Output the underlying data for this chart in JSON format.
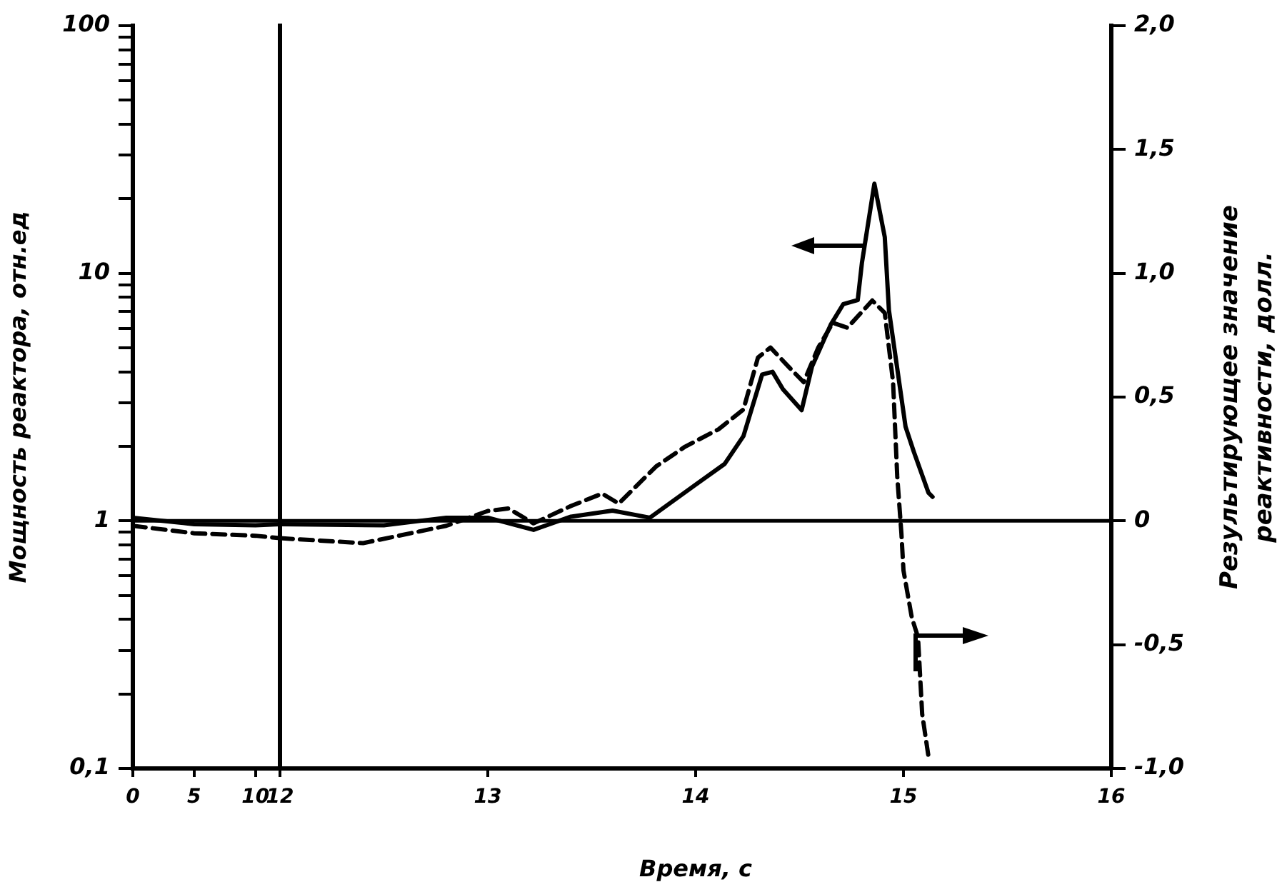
{
  "chart_data": [
    {
      "type": "line",
      "ylabel": "Мощность реактора, отн.ед",
      "marker": "none",
      "grid": false,
      "legend": false,
      "tick_labels": "xy",
      "xlim": [
        0,
        12
      ],
      "xticks": [
        0,
        5,
        10
      ],
      "ylim": [
        0.1,
        100
      ],
      "log": "y",
      "yticks": [
        {
          "value": 0.1,
          "label": "0,1"
        },
        {
          "value": 0.2,
          "label": null
        },
        {
          "value": 0.3,
          "label": null
        },
        {
          "value": 0.4,
          "label": null
        },
        {
          "value": 0.5,
          "label": null
        },
        {
          "value": 0.6,
          "label": null
        },
        {
          "value": 0.7,
          "label": null
        },
        {
          "value": 0.8,
          "label": null
        },
        {
          "value": 0.9,
          "label": null
        },
        1,
        {
          "value": 2,
          "label": null
        },
        {
          "value": 3,
          "label": null
        },
        {
          "value": 4,
          "label": null
        },
        {
          "value": 5,
          "label": null
        },
        {
          "value": 6,
          "label": null
        },
        {
          "value": 7,
          "label": null
        },
        {
          "value": 8,
          "label": null
        },
        {
          "value": 9,
          "label": null
        },
        10,
        {
          "value": 20,
          "label": null
        },
        {
          "value": 30,
          "label": null
        },
        {
          "value": 40,
          "label": null
        },
        {
          "value": 50,
          "label": null
        },
        {
          "value": 60,
          "label": null
        },
        {
          "value": 70,
          "label": null
        },
        {
          "value": 80,
          "label": null
        },
        {
          "value": 90,
          "label": null
        },
        100
      ],
      "y2lim": [
        -1.0,
        2.0
      ],
      "ref_lines": [
        {
          "axis": "y",
          "value": 1,
          "label": null
        }
      ],
      "series": [
        {
          "type": "line",
          "axis": "y",
          "color": "#000000",
          "line_style": "solid",
          "x": [
            0,
            5,
            10,
            12
          ],
          "values": [
            1.03,
            0.97,
            0.96,
            0.97
          ]
        },
        {
          "type": "line",
          "axis": "y2",
          "color": "#000000",
          "line_style": "dashed",
          "x": [
            0,
            5,
            10,
            12
          ],
          "values": [
            -0.02,
            -0.05,
            -0.06,
            -0.07
          ]
        }
      ]
    },
    {
      "type": "line",
      "xlabel": "Время, с",
      "y2label": "Результирующее значение реактивности, долл.",
      "marker": "none",
      "grid": false,
      "legend": false,
      "tick_labels": "xy2",
      "xlim": [
        12,
        16
      ],
      "xticks": [
        12,
        13,
        14,
        15,
        16
      ],
      "ylim": [
        0.1,
        100
      ],
      "log": "y",
      "y2lim": [
        -1.0,
        2.0
      ],
      "y2ticks": [
        {
          "value": -1.0,
          "label": "-1,0"
        },
        {
          "value": -0.5,
          "label": "-0,5"
        },
        0,
        {
          "value": 0.5,
          "label": "0,5"
        },
        {
          "value": 1.0,
          "label": "1,0"
        },
        {
          "value": 1.5,
          "label": "1,5"
        },
        {
          "value": 2.0,
          "label": "2,0"
        }
      ],
      "ref_lines": [
        {
          "axis": "y",
          "value": 1,
          "label": null
        }
      ],
      "series": [
        {
          "type": "line",
          "axis": "y",
          "color": "#000000",
          "line_style": "solid",
          "x": [
            12.0,
            12.5,
            12.8,
            13.0,
            13.22,
            13.4,
            13.6,
            13.78,
            14.0,
            14.14,
            14.23,
            14.32,
            14.37,
            14.42,
            14.51,
            14.56,
            14.65,
            14.71,
            14.78,
            14.8,
            14.86,
            14.91,
            14.93,
            15.01,
            15.05,
            15.12,
            15.14
          ],
          "values": [
            0.97,
            0.96,
            1.03,
            1.03,
            0.92,
            1.04,
            1.1,
            1.03,
            1.4,
            1.7,
            2.2,
            3.9,
            4.0,
            3.4,
            2.8,
            4.2,
            6.2,
            7.5,
            7.8,
            11,
            23,
            14,
            7.1,
            2.4,
            1.9,
            1.3,
            1.25
          ]
        },
        {
          "type": "line",
          "axis": "y2",
          "color": "#000000",
          "line_style": "dashed",
          "x": [
            12.0,
            12.4,
            12.8,
            13.0,
            13.1,
            13.22,
            13.4,
            13.55,
            13.63,
            13.81,
            13.95,
            14.11,
            14.23,
            14.3,
            14.36,
            14.45,
            14.52,
            14.59,
            14.66,
            14.73,
            14.85,
            14.91,
            14.95,
            14.97,
            14.99,
            15.0,
            15.04,
            15.07,
            15.09,
            15.12
          ],
          "values": [
            -0.07,
            -0.09,
            -0.02,
            0.04,
            0.05,
            -0.01,
            0.06,
            0.11,
            0.07,
            0.22,
            0.3,
            0.37,
            0.45,
            0.66,
            0.7,
            0.62,
            0.56,
            0.7,
            0.8,
            0.78,
            0.89,
            0.84,
            0.56,
            0.18,
            -0.05,
            -0.2,
            -0.39,
            -0.47,
            -0.78,
            -0.95
          ]
        }
      ]
    }
  ]
}
